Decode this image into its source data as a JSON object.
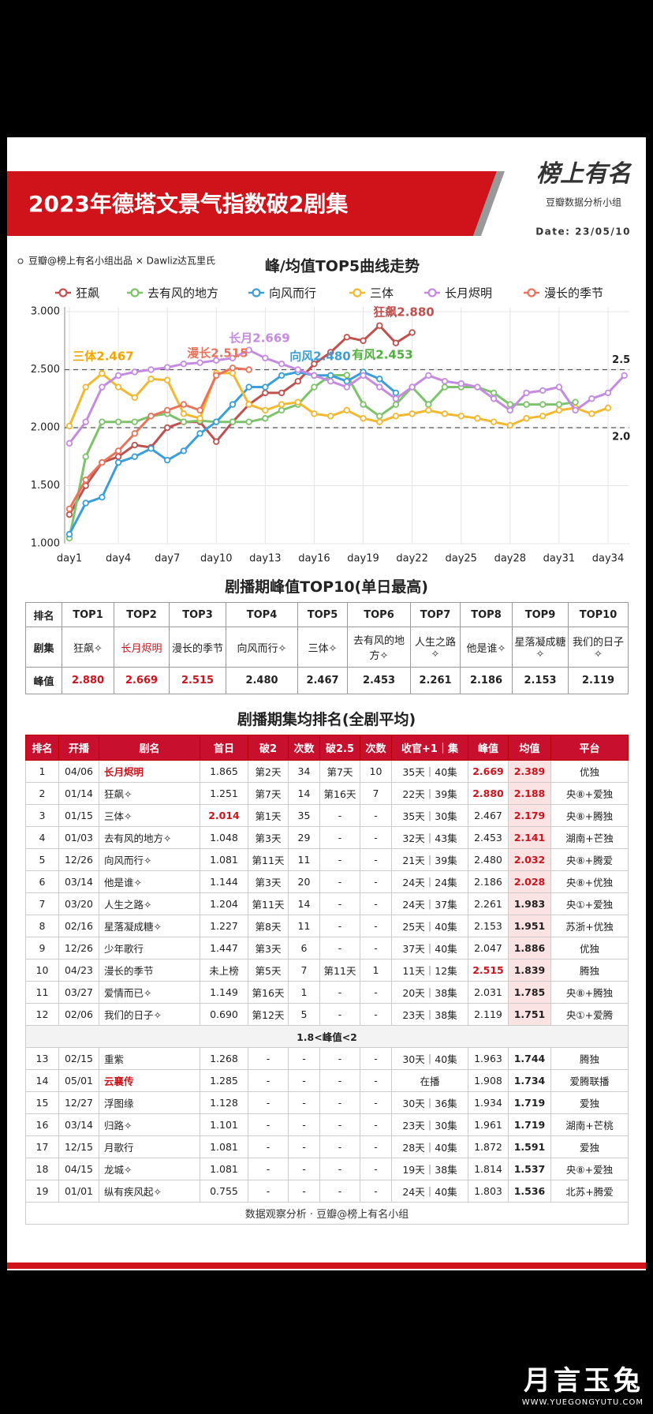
{
  "header": {
    "title": "2023年德塔文景气指数破2剧集",
    "logo": "榜上有名",
    "logo_sub": "豆瓣数据分析小组",
    "date": "Date: 23/05/10",
    "credit": "豆瓣@榜上有名小组出品 × Dawliz达瓦里氏"
  },
  "chart_data": {
    "type": "line",
    "title": "峰/均值TOP5曲线走势",
    "categories": [
      "day1",
      null,
      null,
      "day4",
      null,
      null,
      "day7",
      null,
      null,
      "day10",
      null,
      null,
      "day13",
      null,
      null,
      "day16",
      null,
      null,
      "day19",
      null,
      null,
      "day22",
      null,
      null,
      "day25",
      null,
      null,
      "day28",
      null,
      null,
      "day31",
      null,
      null,
      "day34",
      null
    ],
    "series": [
      {
        "name": "狂飙",
        "color": "#c0504d",
        "values": [
          1.251,
          1.5,
          1.7,
          1.75,
          1.85,
          1.83,
          2.0,
          2.05,
          2.05,
          1.88,
          2.05,
          2.2,
          2.3,
          2.3,
          2.4,
          2.55,
          2.65,
          2.78,
          2.75,
          2.88,
          2.73,
          2.82,
          null,
          null,
          null,
          null,
          null,
          null,
          null,
          null,
          null,
          null,
          null,
          null,
          null
        ]
      },
      {
        "name": "去有风的地方",
        "color": "#7dc36b",
        "values": [
          1.048,
          1.75,
          2.05,
          2.05,
          2.05,
          2.1,
          2.12,
          2.05,
          2.06,
          2.05,
          2.05,
          2.05,
          2.08,
          2.15,
          2.2,
          2.35,
          2.45,
          2.453,
          2.2,
          2.1,
          2.2,
          2.35,
          2.2,
          2.35,
          2.35,
          2.35,
          2.3,
          2.2,
          2.2,
          2.2,
          2.2,
          2.22,
          null,
          null,
          null
        ]
      },
      {
        "name": "向风而行",
        "color": "#3a9fd8",
        "values": [
          1.081,
          1.35,
          1.4,
          1.7,
          1.75,
          1.82,
          1.72,
          1.8,
          1.95,
          2.05,
          2.2,
          2.35,
          2.35,
          2.45,
          2.48,
          2.45,
          2.45,
          2.4,
          2.48,
          2.42,
          2.3,
          null,
          null,
          null,
          null,
          null,
          null,
          null,
          null,
          null,
          null,
          null,
          null,
          null,
          null
        ]
      },
      {
        "name": "三体",
        "color": "#f2b830",
        "values": [
          2.014,
          2.35,
          2.467,
          2.35,
          2.26,
          2.42,
          2.41,
          2.12,
          2.08,
          2.47,
          2.47,
          2.2,
          2.15,
          2.2,
          2.22,
          2.12,
          2.1,
          2.15,
          2.08,
          2.05,
          2.1,
          2.12,
          2.15,
          2.12,
          2.1,
          2.08,
          2.05,
          2.02,
          2.08,
          2.1,
          2.15,
          2.17,
          2.12,
          2.17,
          null
        ]
      },
      {
        "name": "长月烬明",
        "color": "#c58be0",
        "values": [
          1.865,
          2.05,
          2.35,
          2.45,
          2.48,
          2.5,
          2.52,
          2.55,
          2.56,
          2.58,
          2.6,
          2.669,
          2.6,
          2.55,
          2.5,
          2.45,
          2.4,
          2.35,
          2.45,
          2.35,
          2.25,
          2.35,
          2.45,
          2.4,
          2.38,
          2.35,
          2.25,
          2.15,
          2.3,
          2.32,
          2.35,
          2.15,
          2.25,
          2.3,
          2.45
        ]
      },
      {
        "name": "漫长的季节",
        "color": "#e8735a",
        "values": [
          1.3,
          1.55,
          1.7,
          1.8,
          1.95,
          2.1,
          2.15,
          2.2,
          2.15,
          2.45,
          2.515,
          2.5,
          null,
          null,
          null,
          null,
          null,
          null,
          null,
          null,
          null,
          null,
          null,
          null,
          null,
          null,
          null,
          null,
          null,
          null,
          null,
          null,
          null,
          null,
          null
        ]
      }
    ],
    "ylim": [
      1,
      3
    ],
    "yticks": [
      {
        "value": 1,
        "label": "1.000"
      },
      {
        "value": 1.5,
        "label": "1.500"
      },
      {
        "value": 2,
        "label": "2.000"
      },
      {
        "value": 2.5,
        "label": "2.500"
      },
      {
        "value": 3,
        "label": "3.000"
      }
    ],
    "grid": true,
    "legend": "top",
    "annotations": [
      "三体2.467",
      "漫长2.515",
      "长月2.669",
      "向风2.480",
      "有风2.453",
      "狂飙2.880"
    ],
    "reference_lines": [
      2.5,
      {
        "value": 2,
        "label": "2.0"
      }
    ]
  },
  "peak_table": {
    "title": "剧播期峰值TOP10(单日最高)",
    "header": [
      "排名",
      "TOP1",
      "TOP2",
      "TOP3",
      "TOP4",
      "TOP5",
      "TOP6",
      "TOP7",
      "TOP8",
      "TOP9",
      "TOP10"
    ],
    "rows": [
      [
        "剧集",
        "狂飙✧",
        "长月烬明",
        "漫长的季节",
        "向风而行✧",
        "三体✧",
        "去有风的地方✧",
        "人生之路✧",
        "他是谁✧",
        "星落凝成糖✧",
        "我们的日子✧"
      ],
      [
        "峰值",
        "2.880",
        "2.669",
        "2.515",
        "2.480",
        "2.467",
        "2.453",
        "2.261",
        "2.186",
        "2.153",
        "2.119"
      ]
    ]
  },
  "avg_table": {
    "title": "剧播期集均排名(全剧平均)",
    "header": [
      "排名",
      "开播",
      "剧名",
      "首日",
      "破2",
      "次数",
      "破2.5",
      "次数",
      "收官+1｜集",
      "峰值",
      "均值",
      "平台"
    ],
    "rows": [
      [
        "1",
        "04/06",
        "长月烬明",
        "1.865",
        "第2天",
        "34",
        "第7天",
        "10",
        "35天｜40集",
        "2.669",
        "2.389",
        "优独"
      ],
      [
        "2",
        "01/14",
        "狂飙✧",
        "1.251",
        "第7天",
        "14",
        "第16天",
        "7",
        "22天｜39集",
        "2.880",
        "2.188",
        "央⑧+爱独"
      ],
      [
        "3",
        "01/15",
        "三体✧",
        "2.014",
        "第1天",
        "35",
        "-",
        "-",
        "35天｜30集",
        "2.467",
        "2.179",
        "央⑧+腾独"
      ],
      [
        "4",
        "01/03",
        "去有风的地方✧",
        "1.048",
        "第3天",
        "29",
        "-",
        "-",
        "32天｜43集",
        "2.453",
        "2.141",
        "湖南+芒独"
      ],
      [
        "5",
        "12/26",
        "向风而行✧",
        "1.081",
        "第11天",
        "11",
        "-",
        "-",
        "21天｜39集",
        "2.480",
        "2.032",
        "央⑧+腾爱"
      ],
      [
        "6",
        "03/14",
        "他是谁✧",
        "1.144",
        "第3天",
        "20",
        "-",
        "-",
        "24天｜24集",
        "2.186",
        "2.028",
        "央⑧+优独"
      ],
      [
        "7",
        "03/20",
        "人生之路✧",
        "1.204",
        "第11天",
        "14",
        "-",
        "-",
        "24天｜37集",
        "2.261",
        "1.983",
        "央①+爱独"
      ],
      [
        "8",
        "02/16",
        "星落凝成糖✧",
        "1.227",
        "第8天",
        "11",
        "-",
        "-",
        "25天｜40集",
        "2.153",
        "1.951",
        "苏浙+优独"
      ],
      [
        "9",
        "12/26",
        "少年歌行",
        "1.447",
        "第3天",
        "6",
        "-",
        "-",
        "37天｜40集",
        "2.047",
        "1.886",
        "优独"
      ],
      [
        "10",
        "04/23",
        "漫长的季节",
        "未上榜",
        "第5天",
        "7",
        "第11天",
        "1",
        "11天｜12集",
        "2.515",
        "1.839",
        "腾独"
      ],
      [
        "11",
        "03/27",
        "爱情而已✧",
        "1.149",
        "第16天",
        "1",
        "-",
        "-",
        "20天｜38集",
        "2.031",
        "1.785",
        "央⑧+腾独"
      ],
      [
        "12",
        "02/06",
        "我们的日子✧",
        "0.690",
        "第12天",
        "5",
        "-",
        "-",
        "23天｜38集",
        "2.119",
        "1.751",
        "央①+爱腾"
      ],
      [
        "13",
        "02/15",
        "重紫",
        "1.268",
        "-",
        "-",
        "-",
        "-",
        "30天｜40集",
        "1.963",
        "1.744",
        "腾独"
      ],
      [
        "14",
        "05/01",
        "云襄传",
        "1.285",
        "-",
        "-",
        "-",
        "-",
        "在播",
        "1.908",
        "1.734",
        "爱腾联播"
      ],
      [
        "15",
        "12/27",
        "浮图缘",
        "1.128",
        "-",
        "-",
        "-",
        "-",
        "30天｜36集",
        "1.934",
        "1.719",
        "爱独"
      ],
      [
        "16",
        "03/14",
        "归路✧",
        "1.101",
        "-",
        "-",
        "-",
        "-",
        "23天｜30集",
        "1.961",
        "1.719",
        "湖南+芒桃"
      ],
      [
        "17",
        "12/15",
        "月歌行",
        "1.081",
        "-",
        "-",
        "-",
        "-",
        "28天｜40集",
        "1.872",
        "1.591",
        "爱独"
      ],
      [
        "18",
        "04/15",
        "龙城✧",
        "1.081",
        "-",
        "-",
        "-",
        "-",
        "19天｜38集",
        "1.814",
        "1.537",
        "央⑧+爱独"
      ],
      [
        "19",
        "01/01",
        "纵有疾风起✧",
        "0.755",
        "-",
        "-",
        "-",
        "-",
        "24天｜40集",
        "1.803",
        "1.536",
        "北苏+腾爱"
      ]
    ],
    "separator": "1.8<峰值<2",
    "footer": "数据观察分析 · 豆瓣@榜上有名小组"
  },
  "watermark": {
    "brand": "月言玉兔",
    "url": "WWW.YUEGONGYUTU.COM"
  }
}
